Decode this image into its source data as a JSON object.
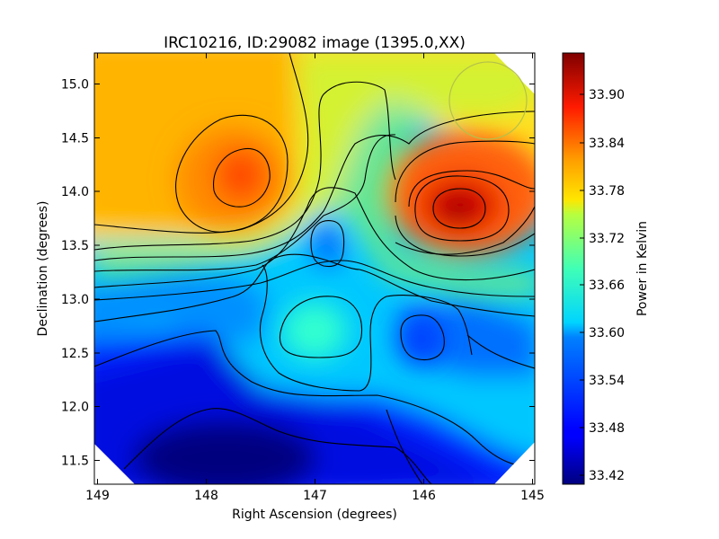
{
  "chart_data": {
    "type": "heatmap",
    "title": "IRC10216, ID:29082 image (1395.0,XX)",
    "xlabel": "Right Ascension (degrees)",
    "ylabel": "Declination (degrees)",
    "xlim": [
      149.03,
      144.97
    ],
    "ylim": [
      11.27,
      15.27
    ],
    "xticks": [
      149,
      148,
      147,
      146,
      145
    ],
    "yticks": [
      11.5,
      12.0,
      12.5,
      13.0,
      13.5,
      14.0,
      14.5,
      15.0
    ],
    "xtick_labels": [
      "149",
      "148",
      "147",
      "146",
      "145"
    ],
    "ytick_labels": [
      "11.5",
      "12.0",
      "12.5",
      "13.0",
      "13.5",
      "14.0",
      "14.5",
      "15.0"
    ],
    "colorbar": {
      "label": "Power in Kelvin",
      "range": [
        33.41,
        33.945
      ],
      "ticks": [
        33.42,
        33.48,
        33.54,
        33.6,
        33.66,
        33.72,
        33.78,
        33.84,
        33.9
      ],
      "tick_labels": [
        "33.42",
        "33.48",
        "33.54",
        "33.60",
        "33.66",
        "33.72",
        "33.78",
        "33.84",
        "33.90"
      ],
      "colormap": "jet"
    },
    "contours": "on",
    "features": [
      {
        "kind": "peak",
        "ra": 145.65,
        "dec": 13.82,
        "value": 33.94
      },
      {
        "kind": "peak",
        "ra": 147.65,
        "dec": 14.12,
        "value": 33.84
      },
      {
        "kind": "minimum",
        "ra": 147.9,
        "dec": 11.3,
        "value": 33.41
      },
      {
        "kind": "minimum",
        "ra": 146.8,
        "dec": 13.5,
        "value": 33.55
      },
      {
        "kind": "minimum",
        "ra": 146.0,
        "dec": 12.65,
        "value": 33.53
      },
      {
        "kind": "local-max",
        "ra": 146.85,
        "dec": 12.7,
        "value": 33.62
      }
    ],
    "beam_circle": {
      "ra": 145.35,
      "dec": 14.82,
      "radius_deg": 0.36,
      "color": "#b4c24a"
    }
  }
}
